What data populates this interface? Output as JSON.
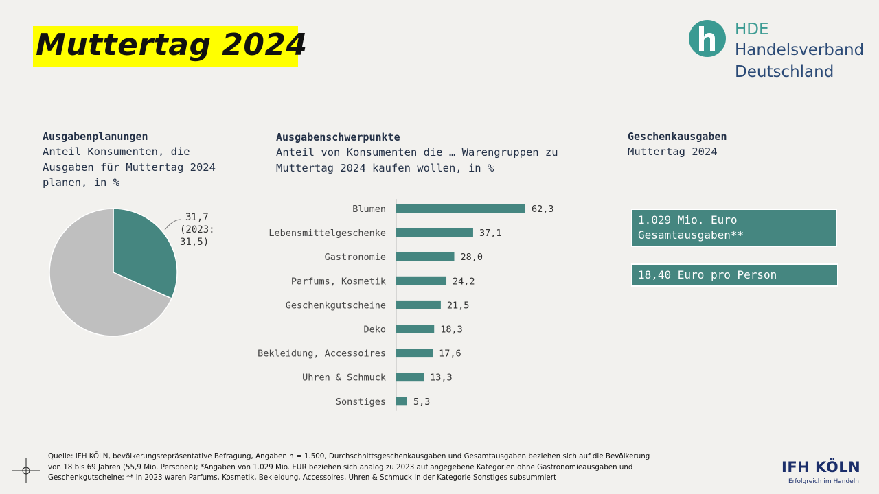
{
  "title": "Muttertag 2024",
  "hde": {
    "abbr": "HDE",
    "line1": "Handelsverband",
    "line2": "Deutschland",
    "colors": {
      "teal": "#3a9a92",
      "navy": "#2b4a76"
    }
  },
  "left": {
    "heading": "Ausgabenplanungen",
    "sub_lines": [
      "Anteil Konsumenten, die",
      "Ausgaben für Muttertag 2024",
      "planen, in %"
    ]
  },
  "middle": {
    "heading": "Ausgabenschwerpunkte",
    "sub_lines": [
      "Anteil von Konsumenten die … Warengruppen zu",
      "Muttertag 2024 kaufen wollen, in %"
    ]
  },
  "right": {
    "heading": "Geschenkausgaben",
    "sub": "Muttertag 2024",
    "box1": [
      "1.029 Mio. Euro",
      "Gesamtausgaben**"
    ],
    "box2": "18,40 Euro pro Person"
  },
  "chart_data": [
    {
      "type": "pie",
      "slices": [
        {
          "value": 31.7,
          "color": "#458680"
        },
        {
          "value": 68.3,
          "color": "#bfbfbf"
        }
      ],
      "labels": [
        "31,7",
        "(2023:",
        "31,5)"
      ]
    },
    {
      "type": "bar",
      "orientation": "horizontal",
      "categories": [
        "Blumen",
        "Lebensmittelgeschenke",
        "Gastronomie",
        "Parfums, Kosmetik",
        "Geschenkgutscheine",
        "Deko",
        "Bekleidung, Accessoires",
        "Uhren & Schmuck",
        "Sonstiges"
      ],
      "values": [
        62.3,
        37.1,
        28.0,
        24.2,
        21.5,
        18.3,
        17.6,
        13.3,
        5.3
      ],
      "value_labels": [
        "62,3",
        "37,1",
        "28,0",
        "24,2",
        "21,5",
        "18,3",
        "17,6",
        "13,3",
        "5,3"
      ],
      "color": "#458680",
      "xlim": [
        0,
        70
      ]
    }
  ],
  "footnote": [
    "Quelle: IFH KÖLN, bevölkerungsrepräsentative Befragung, Angaben n = 1.500, Durchschnittsgeschenkausgaben und Gesamtausgaben beziehen sich auf die Bevölkerung",
    "von 18 bis 69 Jahren (55,9 Mio. Personen); *Angaben von 1.029 Mio. EUR beziehen sich analog zu 2023 auf angegebene Kategorien ohne Gastronomieausgaben und",
    "Geschenkgutscheine; ** in 2023 waren Parfums, Kosmetik, Bekleidung, Accessoires, Uhren & Schmuck in der Kategorie Sonstiges subsummiert"
  ],
  "ifh": {
    "name": "IFH KÖLN",
    "tagline": "Erfolgreich im Handeln",
    "color": "#1c2f6b"
  }
}
